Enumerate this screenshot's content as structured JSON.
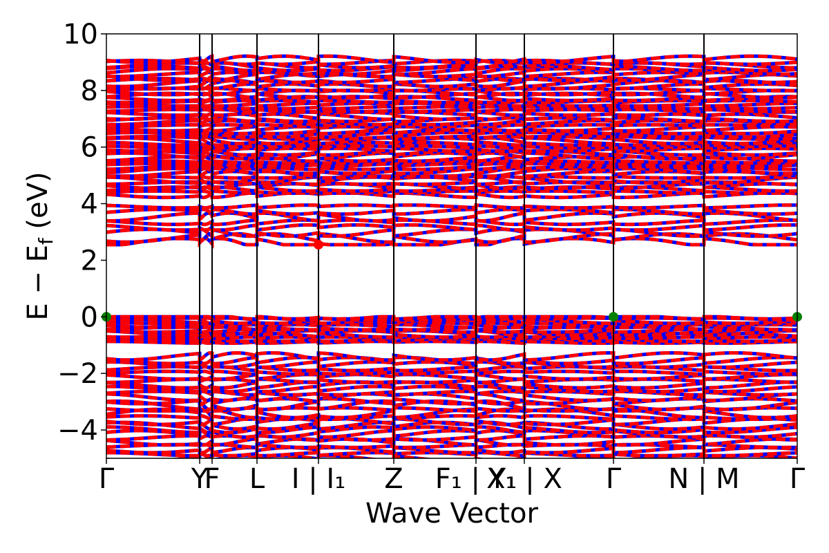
{
  "chart_data": {
    "type": "line",
    "title": "",
    "xlabel": "Wave Vector",
    "ylabel": "E − E",
    "ylabel_sub": "f",
    "ylabel_unit": " (eV)",
    "ylim": [
      -5,
      10
    ],
    "yticks": [
      10,
      8,
      6,
      4,
      2,
      0,
      -2,
      -4
    ],
    "yticks_labels": [
      "10",
      "8",
      "6",
      "4",
      "2",
      "0",
      "−2",
      "−4"
    ],
    "xlim": [
      0,
      1
    ],
    "kpath": [
      {
        "label": "Γ",
        "x": 0.0
      },
      {
        "label": "Y",
        "x": 0.135
      },
      {
        "label": "F",
        "x": 0.153
      },
      {
        "label": "L",
        "x": 0.218
      },
      {
        "label": "I | I₁",
        "x": 0.307
      },
      {
        "label": "Z",
        "x": 0.416
      },
      {
        "label": "F₁ | Y₁",
        "x": 0.535
      },
      {
        "label": "X₁ | X",
        "x": 0.605
      },
      {
        "label": "Γ",
        "x": 0.734
      },
      {
        "label": "N | M",
        "x": 0.865
      },
      {
        "label": "Γ",
        "x": 1.0
      }
    ],
    "series_colors": {
      "spin_up": "#0000ff",
      "spin_down": "#ff0000"
    },
    "band_groups": [
      {
        "min": -5.0,
        "max": -1.4,
        "count": 26
      },
      {
        "min": -0.9,
        "max": 0.0,
        "count": 12
      },
      {
        "min": 2.6,
        "max": 3.9,
        "count": 8
      },
      {
        "min": 4.3,
        "max": 9.1,
        "count": 46
      }
    ],
    "markers": [
      {
        "x": 0.0,
        "y": 0.0,
        "color": "#008000"
      },
      {
        "x": 0.734,
        "y": 0.0,
        "color": "#008000"
      },
      {
        "x": 1.0,
        "y": 0.0,
        "color": "#008000"
      },
      {
        "x": 0.307,
        "y": 2.55,
        "color": "#ff0000"
      }
    ]
  }
}
